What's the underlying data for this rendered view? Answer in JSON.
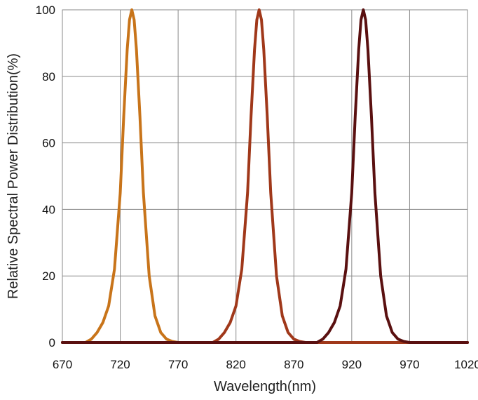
{
  "chart_data": {
    "type": "line",
    "title": "",
    "xlabel": "Wavelength(nm)",
    "ylabel": "Relative Spectral Power Distribution(%)",
    "xlim": [
      670,
      1020
    ],
    "ylim": [
      0,
      100
    ],
    "xticks": [
      670,
      720,
      770,
      820,
      870,
      920,
      970,
      1020
    ],
    "yticks": [
      0,
      20,
      40,
      60,
      80,
      100
    ],
    "grid": true,
    "legend": "none",
    "series": [
      {
        "color": "#c8741a",
        "x": [
          670,
          690,
          695,
          700,
          705,
          710,
          715,
          720,
          723,
          726,
          728,
          730,
          732,
          734,
          737,
          740,
          745,
          750,
          755,
          760,
          765,
          770,
          800,
          1020
        ],
        "y": [
          0,
          0,
          1,
          3,
          6,
          11,
          22,
          45,
          68,
          88,
          97,
          100,
          97,
          88,
          68,
          45,
          20,
          8,
          3,
          1,
          0.3,
          0,
          0,
          0
        ]
      },
      {
        "color": "#a0381a",
        "x": [
          670,
          800,
          805,
          810,
          815,
          820,
          825,
          830,
          833,
          836,
          838,
          840,
          842,
          844,
          847,
          850,
          855,
          860,
          865,
          870,
          875,
          880,
          1020
        ],
        "y": [
          0,
          0,
          1,
          3,
          6,
          11,
          22,
          45,
          68,
          88,
          97,
          100,
          97,
          88,
          68,
          45,
          20,
          8,
          3,
          1,
          0.3,
          0,
          0
        ]
      },
      {
        "color": "#5a1010",
        "x": [
          670,
          890,
          895,
          900,
          905,
          910,
          915,
          920,
          923,
          926,
          928,
          930,
          932,
          934,
          937,
          940,
          945,
          950,
          955,
          960,
          965,
          970,
          1020
        ],
        "y": [
          0,
          0,
          1,
          3,
          6,
          11,
          22,
          45,
          68,
          88,
          97,
          100,
          97,
          88,
          68,
          45,
          20,
          8,
          3,
          1,
          0.3,
          0,
          0
        ]
      }
    ]
  }
}
